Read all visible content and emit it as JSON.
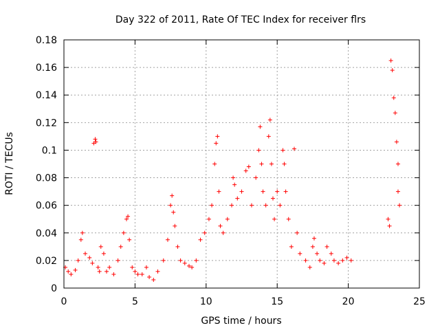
{
  "chart_data": {
    "type": "scatter",
    "title": "Day 322 of 2011, Rate Of TEC Index for receiver flrs",
    "xlabel": "GPS time / hours",
    "ylabel": "ROTI / TECUs",
    "xlim": [
      0,
      25
    ],
    "ylim": [
      0,
      0.18
    ],
    "xticks": [
      0,
      5,
      10,
      15,
      20,
      25
    ],
    "yticks": [
      0,
      0.02,
      0.04,
      0.06,
      0.08,
      0.1,
      0.12,
      0.14,
      0.16,
      0.18
    ],
    "xtick_labels": [
      "0",
      "5",
      "10",
      "15",
      "20",
      "25"
    ],
    "ytick_labels": [
      "0",
      "0.02",
      "0.04",
      "0.06",
      "0.08",
      "0.1",
      "0.12",
      "0.14",
      "0.16",
      "0.18"
    ],
    "grid": true,
    "marker": "+",
    "color": "#ff0000",
    "legend": "none",
    "series": [
      {
        "name": "ROTI",
        "x": [
          0.1,
          0.3,
          0.5,
          0.8,
          1.0,
          1.2,
          1.3,
          1.5,
          1.8,
          2.0,
          2.1,
          2.2,
          2.25,
          2.4,
          2.5,
          2.6,
          2.8,
          3.0,
          3.2,
          3.5,
          3.8,
          4.0,
          4.2,
          4.4,
          4.5,
          4.6,
          4.8,
          5.0,
          5.2,
          5.5,
          5.8,
          6.0,
          6.3,
          6.6,
          7.0,
          7.3,
          7.5,
          7.6,
          7.7,
          7.8,
          8.0,
          8.2,
          8.5,
          8.8,
          9.0,
          9.3,
          9.6,
          9.9,
          10.2,
          10.4,
          10.6,
          10.7,
          10.8,
          10.9,
          11.0,
          11.2,
          11.5,
          11.8,
          11.9,
          12.0,
          12.2,
          12.5,
          12.8,
          13.0,
          13.2,
          13.5,
          13.7,
          13.8,
          13.9,
          14.0,
          14.2,
          14.4,
          14.5,
          14.6,
          14.7,
          14.8,
          15.0,
          15.2,
          15.4,
          15.5,
          15.6,
          15.8,
          16.0,
          16.2,
          16.4,
          16.6,
          17.0,
          17.3,
          17.5,
          17.6,
          17.8,
          18.0,
          18.3,
          18.5,
          18.8,
          19.0,
          19.3,
          19.6,
          19.9,
          20.2,
          22.8,
          22.9,
          23.0,
          23.1,
          23.2,
          23.3,
          23.4,
          23.5,
          23.5,
          23.6
        ],
        "y": [
          0.015,
          0.012,
          0.01,
          0.013,
          0.02,
          0.035,
          0.04,
          0.025,
          0.022,
          0.018,
          0.105,
          0.108,
          0.106,
          0.015,
          0.012,
          0.03,
          0.025,
          0.012,
          0.015,
          0.01,
          0.02,
          0.03,
          0.04,
          0.05,
          0.052,
          0.035,
          0.015,
          0.012,
          0.01,
          0.01,
          0.015,
          0.008,
          0.006,
          0.012,
          0.02,
          0.035,
          0.06,
          0.067,
          0.055,
          0.045,
          0.03,
          0.02,
          0.018,
          0.016,
          0.015,
          0.02,
          0.035,
          0.04,
          0.05,
          0.06,
          0.09,
          0.105,
          0.11,
          0.07,
          0.045,
          0.04,
          0.05,
          0.06,
          0.08,
          0.075,
          0.065,
          0.07,
          0.085,
          0.088,
          0.06,
          0.08,
          0.1,
          0.117,
          0.09,
          0.07,
          0.06,
          0.11,
          0.122,
          0.09,
          0.065,
          0.05,
          0.07,
          0.06,
          0.1,
          0.09,
          0.07,
          0.05,
          0.03,
          0.101,
          0.04,
          0.025,
          0.02,
          0.015,
          0.03,
          0.036,
          0.025,
          0.02,
          0.018,
          0.03,
          0.025,
          0.02,
          0.018,
          0.02,
          0.022,
          0.02,
          0.05,
          0.045,
          0.165,
          0.158,
          0.138,
          0.127,
          0.106,
          0.09,
          0.07,
          0.06
        ]
      }
    ]
  }
}
